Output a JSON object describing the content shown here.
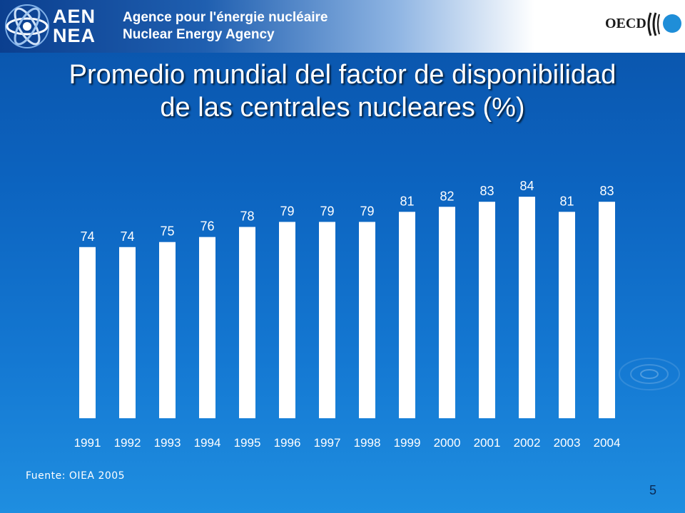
{
  "header": {
    "nea_abbr_fr": "AEN",
    "nea_abbr_en": "NEA",
    "agency_fr": "Agence pour l'énergie nucléaire",
    "agency_en": "Nuclear Energy Agency",
    "oecd": "OECD"
  },
  "title": {
    "line1": "Promedio mundial del factor de disponibilidad",
    "line2": "de las centrales nucleares (%)"
  },
  "source": "Fuente: OIEA 2005",
  "page_number": "5",
  "colors": {
    "background": "#0c63bf",
    "bar": "#ffffff",
    "text": "#ffffff"
  },
  "chart_data": {
    "type": "bar",
    "title": "Promedio mundial del factor de disponibilidad de las centrales nucleares (%)",
    "xlabel": "",
    "ylabel": "",
    "categories": [
      "1991",
      "1992",
      "1993",
      "1994",
      "1995",
      "1996",
      "1997",
      "1998",
      "1999",
      "2000",
      "2001",
      "2002",
      "2003",
      "2004"
    ],
    "values": [
      74,
      74,
      75,
      76,
      78,
      79,
      79,
      79,
      81,
      82,
      83,
      84,
      81,
      83
    ],
    "value_labels": [
      "74",
      "74",
      "75",
      "76",
      "78",
      "79",
      "79",
      "79",
      "81",
      "82",
      "83",
      "84",
      "81",
      "83"
    ],
    "ylim": [
      40,
      86
    ],
    "grid": false,
    "legend": "none"
  }
}
